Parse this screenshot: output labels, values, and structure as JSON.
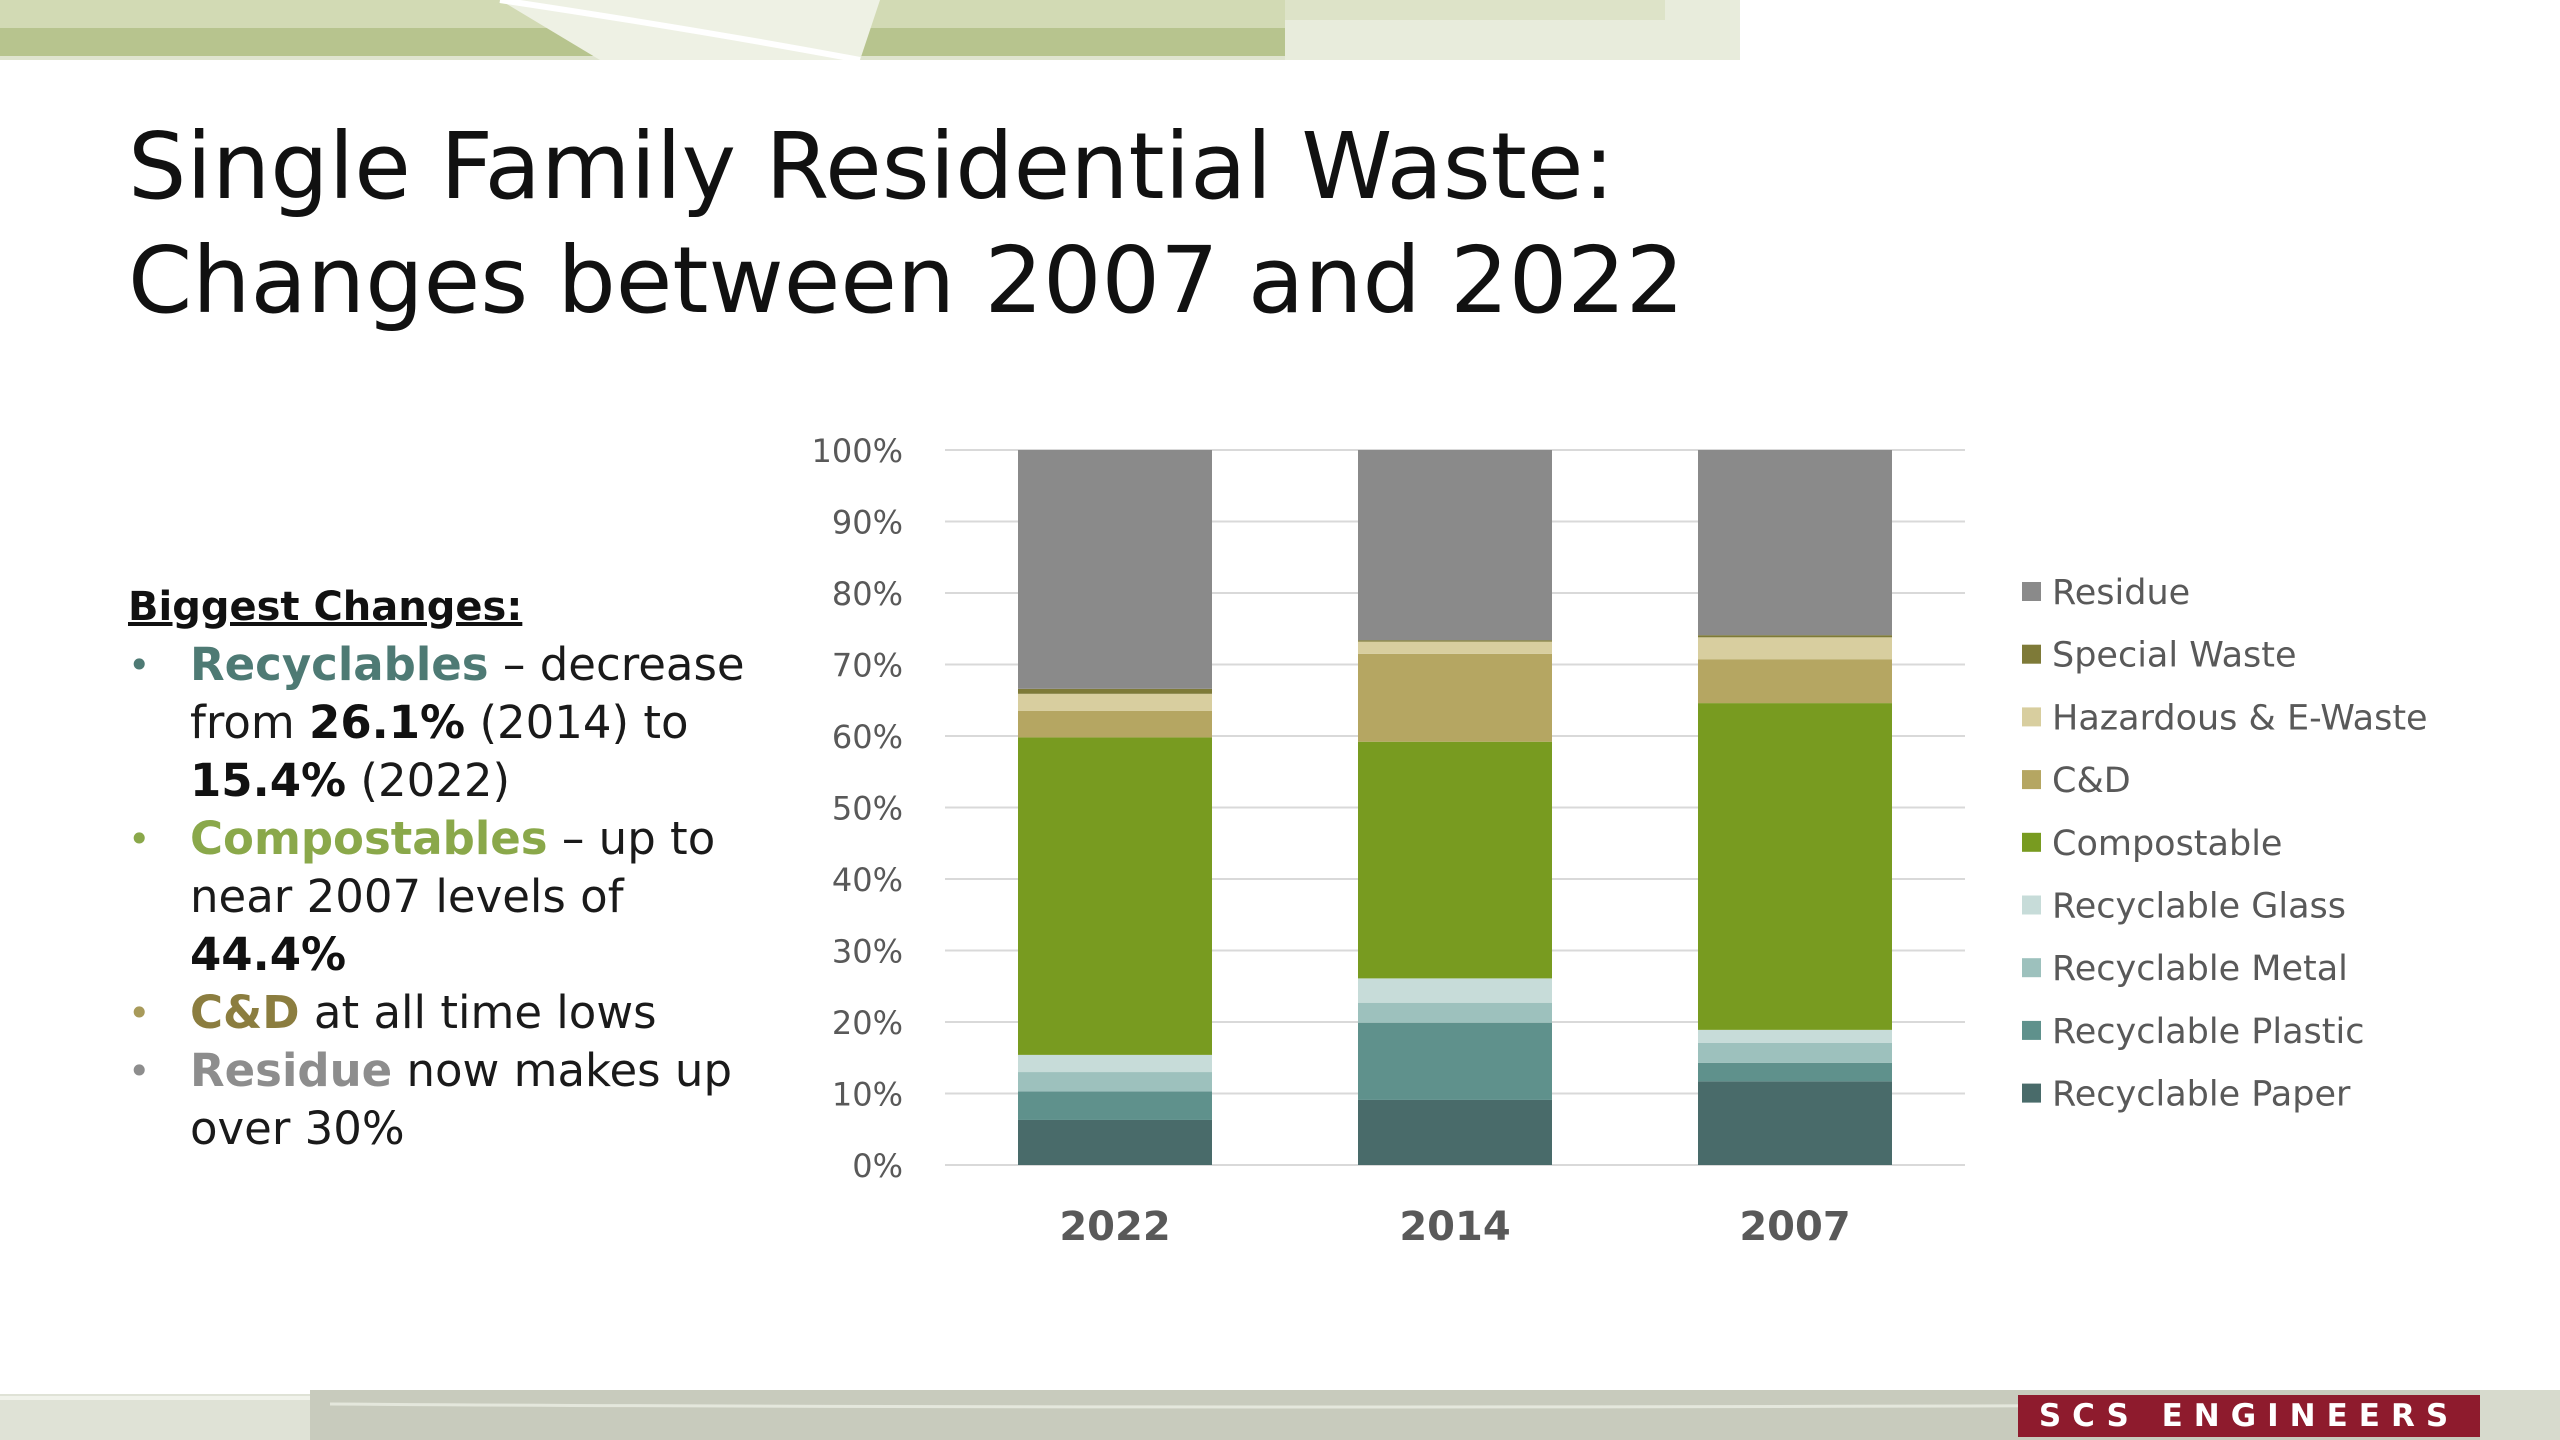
{
  "slide": {
    "title_line1": "Single Family Residential Waste:",
    "title_line2": "Changes between 2007 and 2022",
    "brand": "SCS ENGINEERS"
  },
  "notes": {
    "heading": "Biggest Changes:",
    "recyclables": {
      "keyword": "Recyclables",
      "t1": " – decrease from ",
      "v1": "26.1%",
      "t2": " (2014) to ",
      "v2": "15.4%",
      "t3": " (2022)"
    },
    "compostables": {
      "keyword": "Compostables",
      "t1": " – up to near 2007 levels of ",
      "v1": "44.4%"
    },
    "cd": {
      "keyword": "C&D",
      "t1": " at all time lows"
    },
    "residue": {
      "keyword": "Residue",
      "t1": " now makes up over 30%"
    }
  },
  "colors": {
    "Recyclable Paper": "#496b6a",
    "Recyclable Plastic": "#5f918c",
    "Recyclable Metal": "#9dc1bd",
    "Recyclable Glass": "#c7dcd9",
    "Compostable": "#789b20",
    "C&D": "#b5a662",
    "Hazardous & E-Waste": "#d8ce9f",
    "Special Waste": "#7e7a38",
    "Residue": "#8a8a8a"
  },
  "chart_data": {
    "type": "bar",
    "stacked": true,
    "categories": [
      "2022",
      "2014",
      "2007"
    ],
    "ylim": [
      0,
      100
    ],
    "yticks": [
      "0%",
      "10%",
      "20%",
      "30%",
      "40%",
      "50%",
      "60%",
      "70%",
      "80%",
      "90%",
      "100%"
    ],
    "ytick_values": [
      0,
      10,
      20,
      30,
      40,
      50,
      60,
      70,
      80,
      90,
      100
    ],
    "grid": true,
    "legend_position": "right",
    "series": [
      {
        "name": "Recyclable Paper",
        "values": [
          6.3,
          9.1,
          11.7
        ]
      },
      {
        "name": "Recyclable Plastic",
        "values": [
          4.0,
          10.8,
          2.6
        ]
      },
      {
        "name": "Recyclable Metal",
        "values": [
          2.7,
          2.8,
          2.8
        ]
      },
      {
        "name": "Recyclable Glass",
        "values": [
          2.4,
          3.4,
          1.8
        ]
      },
      {
        "name": "Compostable",
        "values": [
          44.4,
          33.1,
          45.7
        ]
      },
      {
        "name": "C&D",
        "values": [
          3.7,
          12.3,
          6.1
        ]
      },
      {
        "name": "Hazardous & E-Waste",
        "values": [
          2.4,
          1.7,
          3.1
        ]
      },
      {
        "name": "Special Waste",
        "values": [
          0.7,
          0.2,
          0.3
        ]
      },
      {
        "name": "Residue",
        "values": [
          33.4,
          26.6,
          25.9
        ]
      }
    ],
    "legend_order": [
      "Residue",
      "Special Waste",
      "Hazardous & E-Waste",
      "C&D",
      "Compostable",
      "Recyclable Glass",
      "Recyclable Metal",
      "Recyclable Plastic",
      "Recyclable Paper"
    ]
  }
}
